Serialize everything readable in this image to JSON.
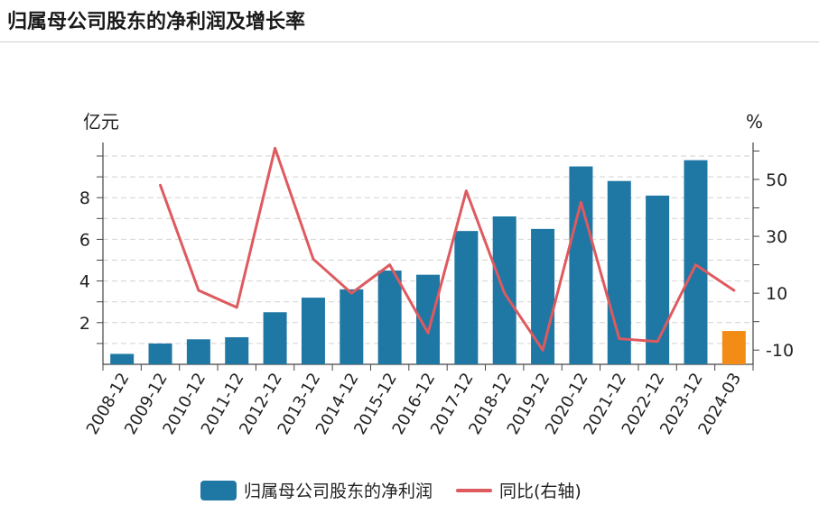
{
  "title": "归属母公司股东的净利润及增长率",
  "chart_data": {
    "type": "bar",
    "categories": [
      "2008-12",
      "2009-12",
      "2010-12",
      "2011-12",
      "2012-12",
      "2013-12",
      "2014-12",
      "2015-12",
      "2016-12",
      "2017-12",
      "2018-12",
      "2019-12",
      "2020-12",
      "2021-12",
      "2022-12",
      "2023-12",
      "2024-03"
    ],
    "series": [
      {
        "name": "归属母公司股东的净利润",
        "type": "bar",
        "axis": "left",
        "color": "#1f77a4",
        "highlight_color": "#f28c17",
        "highlight_index": 16,
        "values": [
          0.5,
          1.0,
          1.2,
          1.3,
          2.5,
          3.2,
          3.6,
          4.5,
          4.3,
          6.4,
          7.1,
          6.5,
          9.5,
          8.8,
          8.1,
          9.8,
          1.6
        ]
      },
      {
        "name": "同比(右轴)",
        "type": "line",
        "axis": "right",
        "color": "#de5a5f",
        "values": [
          null,
          48,
          11,
          5,
          61,
          22,
          10,
          20,
          -4,
          46,
          10,
          -10,
          42,
          -6,
          -7,
          20,
          11
        ]
      }
    ],
    "left_axis": {
      "label": "亿元",
      "ticks": [
        2,
        4,
        6,
        8
      ],
      "range": [
        0,
        10.65
      ]
    },
    "right_axis": {
      "label": "%",
      "ticks": [
        -10,
        10,
        30,
        50
      ],
      "range": [
        -15,
        63
      ]
    },
    "grid": true,
    "legend_position": "bottom"
  }
}
